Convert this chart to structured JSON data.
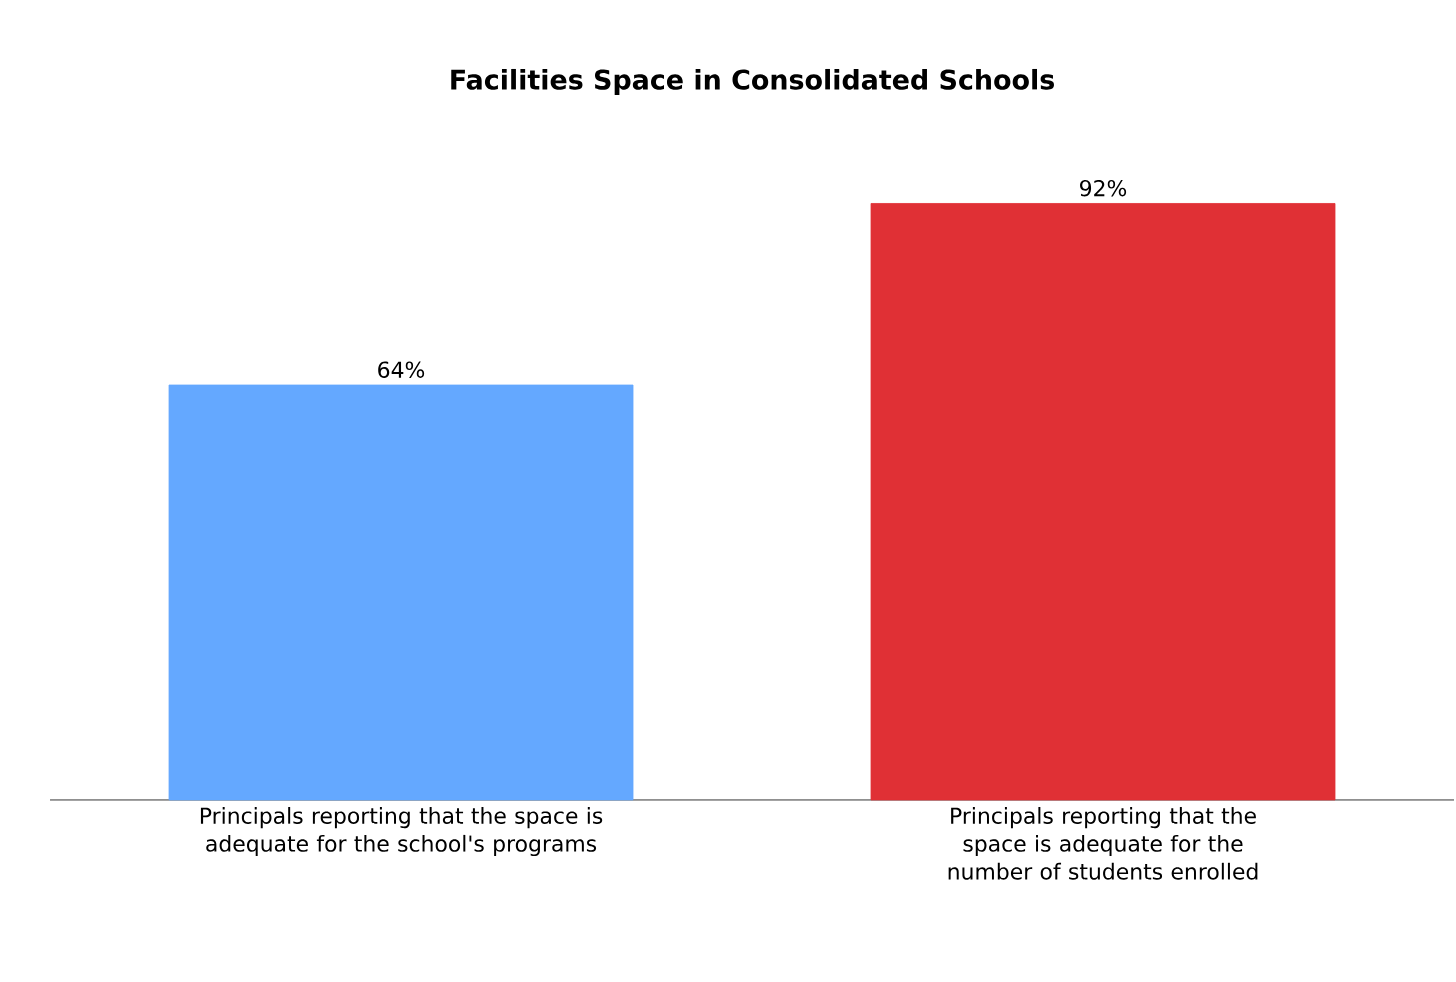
{
  "chart_data": {
    "type": "bar",
    "title": "Facilities Space in Consolidated Schools",
    "categories": [
      "Principals reporting that the space is adequate for the school's programs",
      "Principals reporting that the space is adequate for the number of students enrolled"
    ],
    "values": [
      64,
      92
    ],
    "value_labels": [
      "64%",
      "92%"
    ],
    "colors": [
      "#64a8ff",
      "#e03035"
    ]
  }
}
